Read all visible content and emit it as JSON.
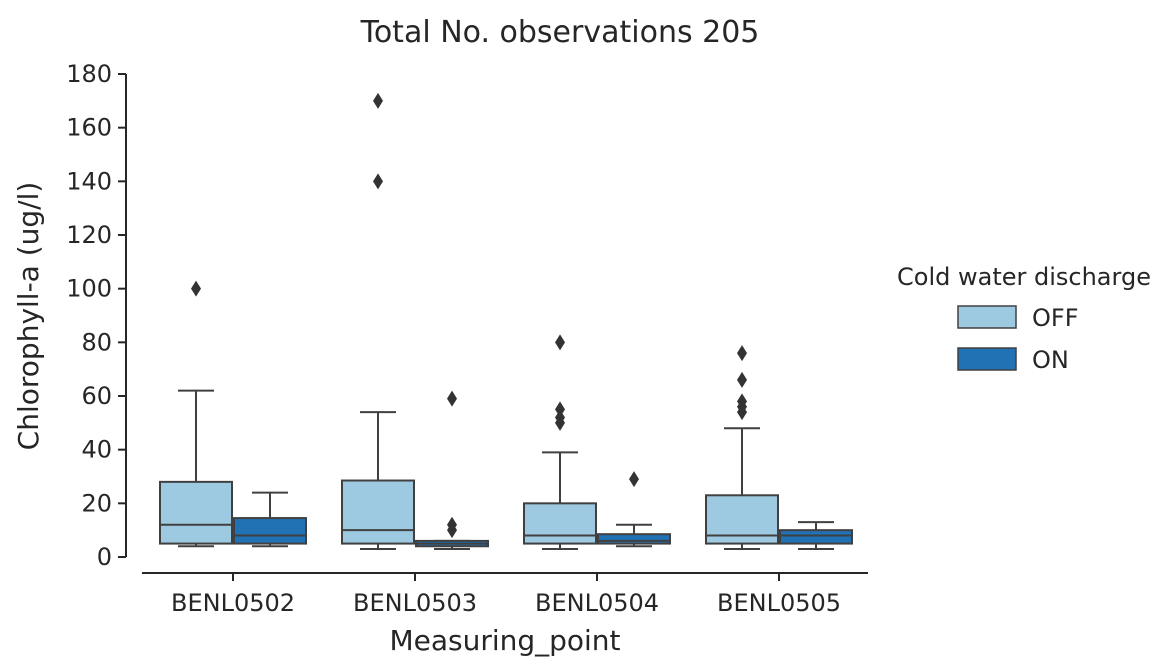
{
  "chart_data": {
    "type": "box",
    "title": "Total No. observations 205",
    "xlabel": "Measuring_point",
    "ylabel": "Chlorophyll-a (ug/l)",
    "ylim": [
      0,
      180
    ],
    "yticks": [
      0,
      20,
      40,
      60,
      80,
      100,
      120,
      140,
      160,
      180
    ],
    "categories": [
      "BENL0502",
      "BENL0503",
      "BENL0504",
      "BENL0505"
    ],
    "legend": {
      "title": "Cold water discharge",
      "placement": "right"
    },
    "grid": false,
    "series": [
      {
        "name": "OFF",
        "color": "#9ecae1",
        "boxes": [
          {
            "whisker_low": 4,
            "q1": 5,
            "median": 12,
            "q3": 28,
            "whisker_high": 62,
            "outliers": [
              100
            ]
          },
          {
            "whisker_low": 3,
            "q1": 5,
            "median": 10,
            "q3": 28.5,
            "whisker_high": 54,
            "outliers": [
              140,
              170
            ]
          },
          {
            "whisker_low": 3,
            "q1": 5,
            "median": 8,
            "q3": 20,
            "whisker_high": 39,
            "outliers": [
              50,
              52,
              55,
              80
            ]
          },
          {
            "whisker_low": 3,
            "q1": 5,
            "median": 8,
            "q3": 23,
            "whisker_high": 48,
            "outliers": [
              54,
              56,
              58,
              66,
              76
            ]
          }
        ]
      },
      {
        "name": "ON",
        "color": "#2171b5",
        "boxes": [
          {
            "whisker_low": 4,
            "q1": 5,
            "median": 8,
            "q3": 14.5,
            "whisker_high": 24,
            "outliers": []
          },
          {
            "whisker_low": 3,
            "q1": 4,
            "median": 5,
            "q3": 6,
            "whisker_high": 6,
            "outliers": [
              10,
              12,
              59
            ]
          },
          {
            "whisker_low": 4,
            "q1": 5,
            "median": 6,
            "q3": 8.5,
            "whisker_high": 12,
            "outliers": [
              29
            ]
          },
          {
            "whisker_low": 3,
            "q1": 5,
            "median": 8,
            "q3": 10,
            "whisker_high": 13,
            "outliers": []
          }
        ]
      }
    ]
  }
}
